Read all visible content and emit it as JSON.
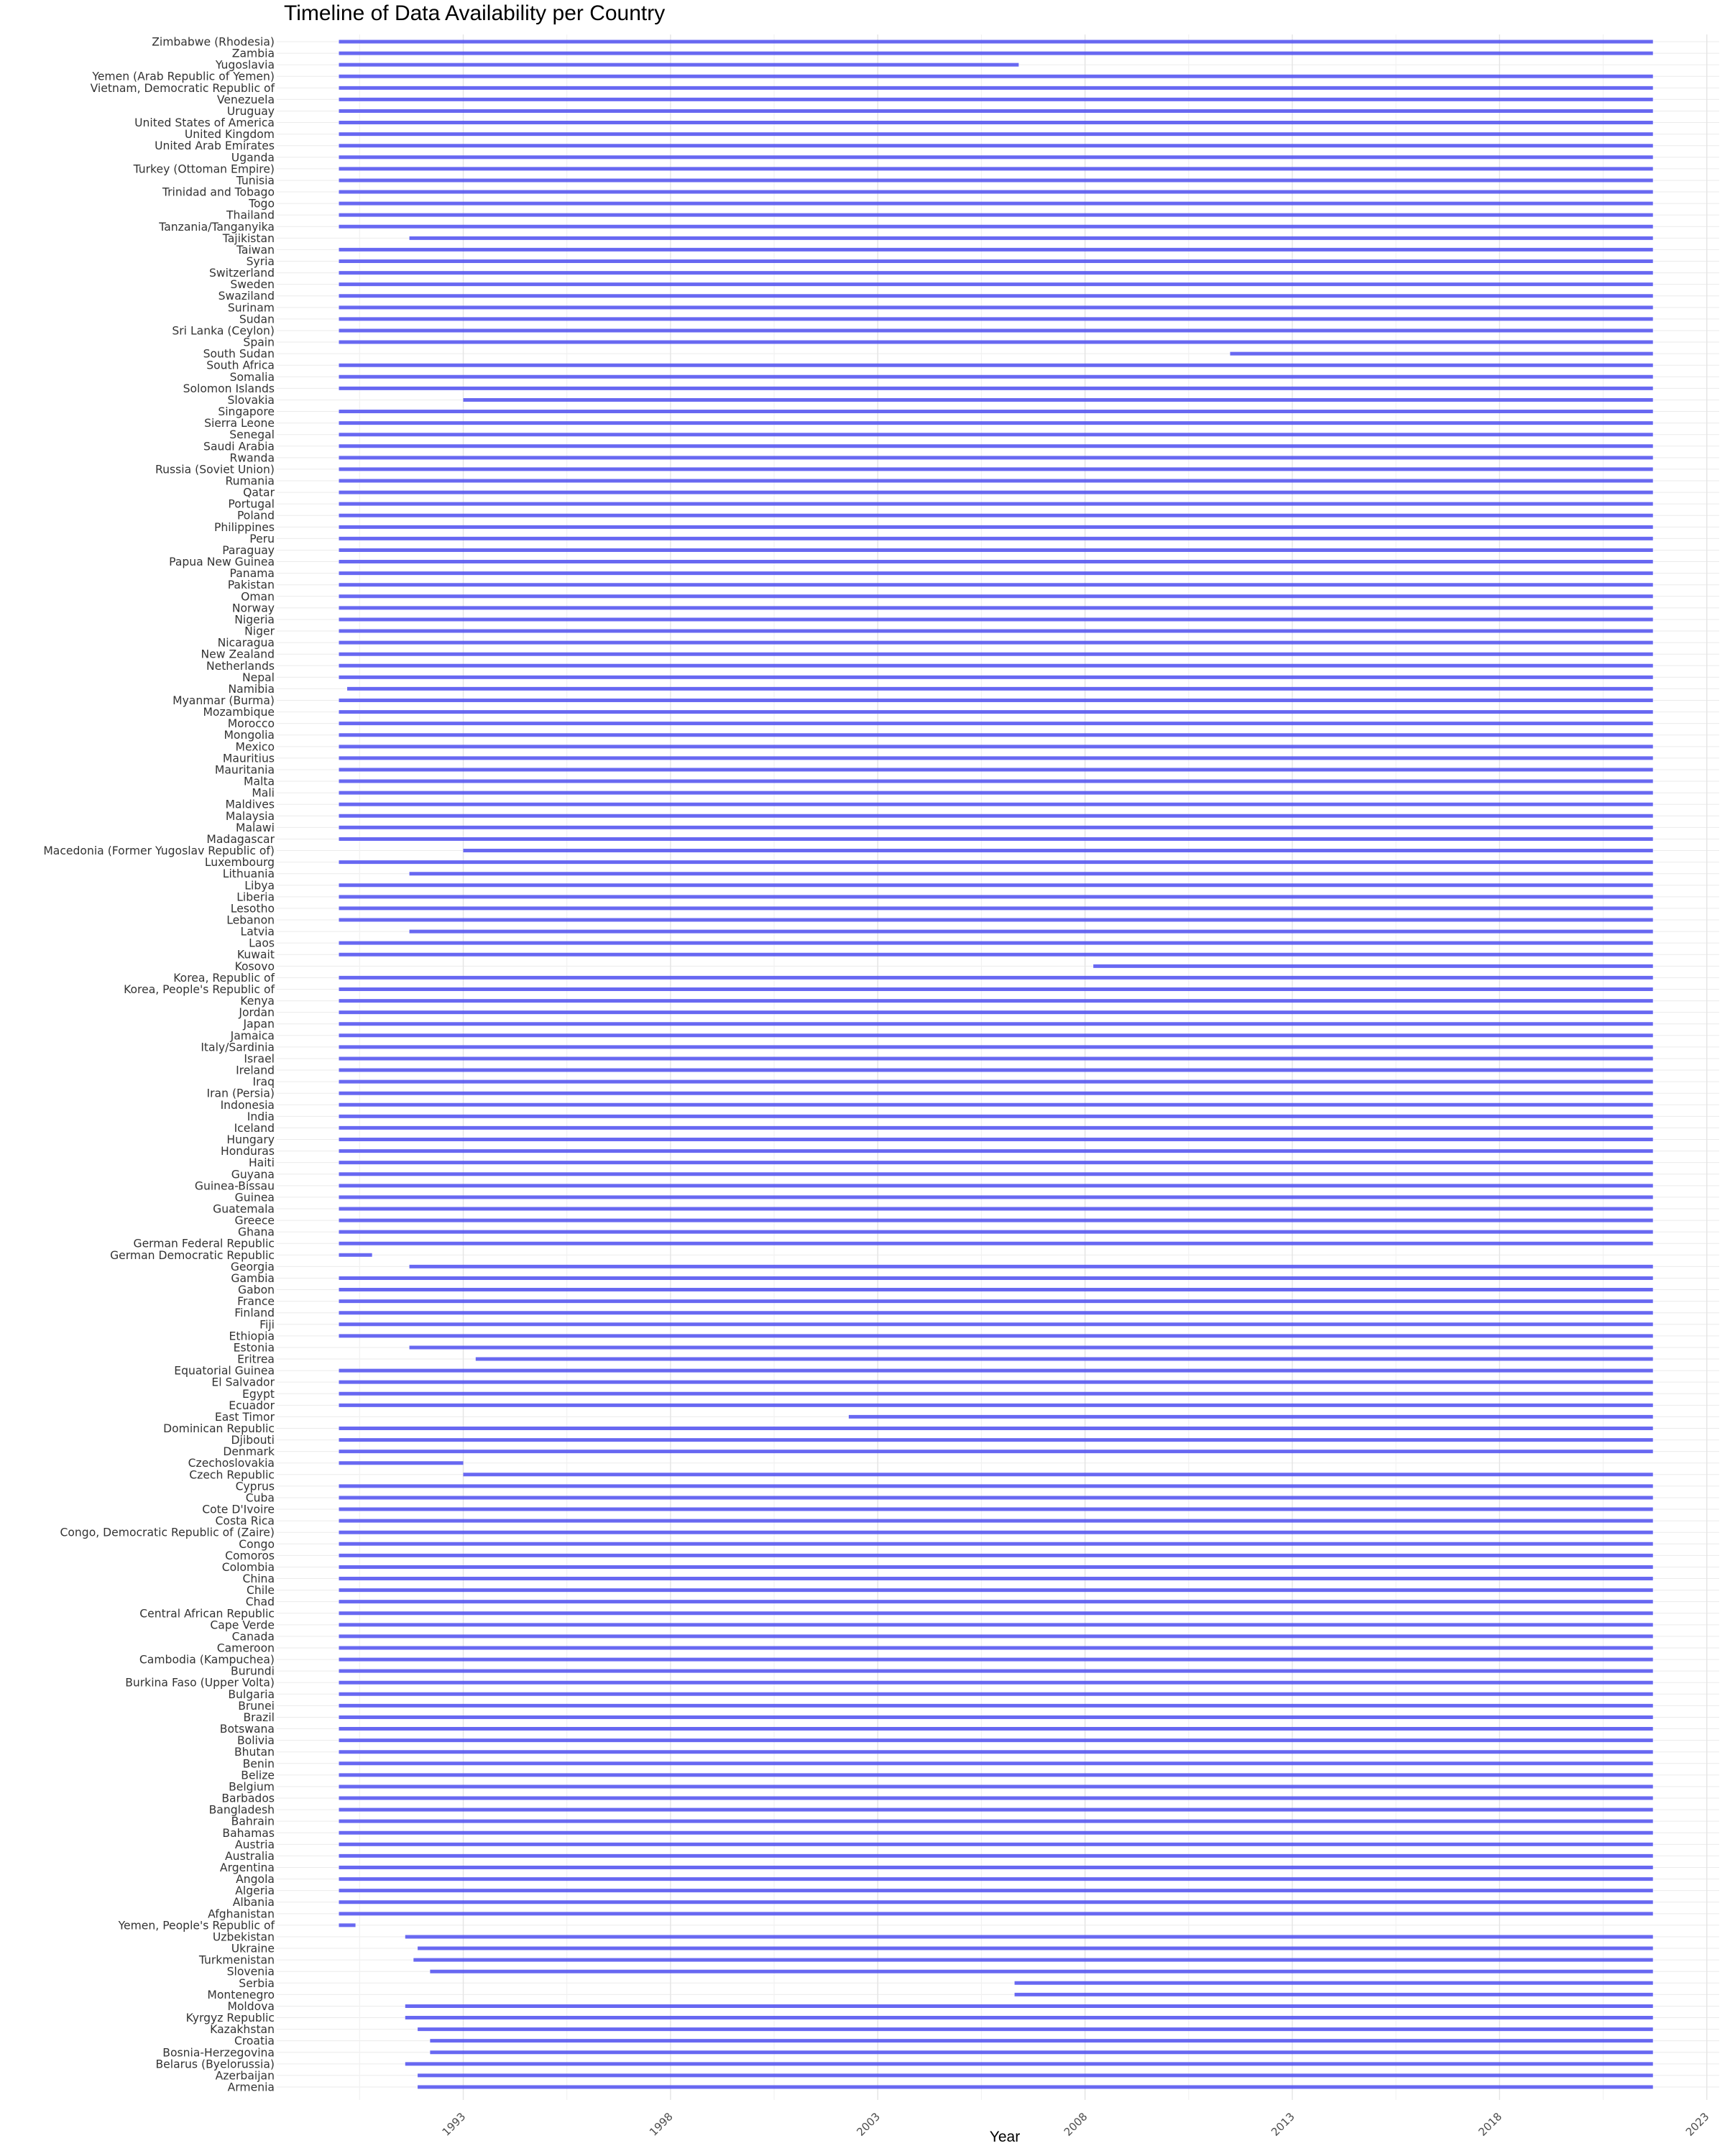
{
  "chart_data": {
    "type": "timeline",
    "title": "Timeline of Data Availability per Country",
    "xlabel": "Year",
    "ylabel": "",
    "x_ticks": [
      1993,
      1998,
      2003,
      2008,
      2013,
      2018,
      2023
    ],
    "xlim": [
      1988.5,
      2023.3
    ],
    "grid": true,
    "bar_color": "#4f4ff0",
    "series": [
      {
        "country": "Zimbabwe (Rhodesia)",
        "start": 1990,
        "end": 2021.7
      },
      {
        "country": "Zambia",
        "start": 1990,
        "end": 2021.7
      },
      {
        "country": "Yugoslavia",
        "start": 1990,
        "end": 2006.4
      },
      {
        "country": "Yemen (Arab Republic of Yemen)",
        "start": 1990,
        "end": 2021.7
      },
      {
        "country": "Vietnam, Democratic Republic of",
        "start": 1990,
        "end": 2021.7
      },
      {
        "country": "Venezuela",
        "start": 1990,
        "end": 2021.7
      },
      {
        "country": "Uruguay",
        "start": 1990,
        "end": 2021.7
      },
      {
        "country": "United States of America",
        "start": 1990,
        "end": 2021.7
      },
      {
        "country": "United Kingdom",
        "start": 1990,
        "end": 2021.7
      },
      {
        "country": "United Arab Emirates",
        "start": 1990,
        "end": 2021.7
      },
      {
        "country": "Uganda",
        "start": 1990,
        "end": 2021.7
      },
      {
        "country": "Turkey (Ottoman Empire)",
        "start": 1990,
        "end": 2021.7
      },
      {
        "country": "Tunisia",
        "start": 1990,
        "end": 2021.7
      },
      {
        "country": "Trinidad and Tobago",
        "start": 1990,
        "end": 2021.7
      },
      {
        "country": "Togo",
        "start": 1990,
        "end": 2021.7
      },
      {
        "country": "Thailand",
        "start": 1990,
        "end": 2021.7
      },
      {
        "country": "Tanzania/Tanganyika",
        "start": 1990,
        "end": 2021.7
      },
      {
        "country": "Tajikistan",
        "start": 1991.7,
        "end": 2021.7
      },
      {
        "country": "Taiwan",
        "start": 1990,
        "end": 2021.7
      },
      {
        "country": "Syria",
        "start": 1990,
        "end": 2021.7
      },
      {
        "country": "Switzerland",
        "start": 1990,
        "end": 2021.7
      },
      {
        "country": "Sweden",
        "start": 1990,
        "end": 2021.7
      },
      {
        "country": "Swaziland",
        "start": 1990,
        "end": 2021.7
      },
      {
        "country": "Surinam",
        "start": 1990,
        "end": 2021.7
      },
      {
        "country": "Sudan",
        "start": 1990,
        "end": 2021.7
      },
      {
        "country": "Sri Lanka (Ceylon)",
        "start": 1990,
        "end": 2021.7
      },
      {
        "country": "Spain",
        "start": 1990,
        "end": 2021.7
      },
      {
        "country": "South Sudan",
        "start": 2011.5,
        "end": 2021.7
      },
      {
        "country": "South Africa",
        "start": 1990,
        "end": 2021.7
      },
      {
        "country": "Somalia",
        "start": 1990,
        "end": 2021.7
      },
      {
        "country": "Solomon Islands",
        "start": 1990,
        "end": 2021.7
      },
      {
        "country": "Slovakia",
        "start": 1993,
        "end": 2021.7
      },
      {
        "country": "Singapore",
        "start": 1990,
        "end": 2021.7
      },
      {
        "country": "Sierra Leone",
        "start": 1990,
        "end": 2021.7
      },
      {
        "country": "Senegal",
        "start": 1990,
        "end": 2021.7
      },
      {
        "country": "Saudi Arabia",
        "start": 1990,
        "end": 2021.7
      },
      {
        "country": "Rwanda",
        "start": 1990,
        "end": 2021.7
      },
      {
        "country": "Russia (Soviet Union)",
        "start": 1990,
        "end": 2021.7
      },
      {
        "country": "Rumania",
        "start": 1990,
        "end": 2021.7
      },
      {
        "country": "Qatar",
        "start": 1990,
        "end": 2021.7
      },
      {
        "country": "Portugal",
        "start": 1990,
        "end": 2021.7
      },
      {
        "country": "Poland",
        "start": 1990,
        "end": 2021.7
      },
      {
        "country": "Philippines",
        "start": 1990,
        "end": 2021.7
      },
      {
        "country": "Peru",
        "start": 1990,
        "end": 2021.7
      },
      {
        "country": "Paraguay",
        "start": 1990,
        "end": 2021.7
      },
      {
        "country": "Papua New Guinea",
        "start": 1990,
        "end": 2021.7
      },
      {
        "country": "Panama",
        "start": 1990,
        "end": 2021.7
      },
      {
        "country": "Pakistan",
        "start": 1990,
        "end": 2021.7
      },
      {
        "country": "Oman",
        "start": 1990,
        "end": 2021.7
      },
      {
        "country": "Norway",
        "start": 1990,
        "end": 2021.7
      },
      {
        "country": "Nigeria",
        "start": 1990,
        "end": 2021.7
      },
      {
        "country": "Niger",
        "start": 1990,
        "end": 2021.7
      },
      {
        "country": "Nicaragua",
        "start": 1990,
        "end": 2021.7
      },
      {
        "country": "New Zealand",
        "start": 1990,
        "end": 2021.7
      },
      {
        "country": "Netherlands",
        "start": 1990,
        "end": 2021.7
      },
      {
        "country": "Nepal",
        "start": 1990,
        "end": 2021.7
      },
      {
        "country": "Namibia",
        "start": 1990.2,
        "end": 2021.7
      },
      {
        "country": "Myanmar (Burma)",
        "start": 1990,
        "end": 2021.7
      },
      {
        "country": "Mozambique",
        "start": 1990,
        "end": 2021.7
      },
      {
        "country": "Morocco",
        "start": 1990,
        "end": 2021.7
      },
      {
        "country": "Mongolia",
        "start": 1990,
        "end": 2021.7
      },
      {
        "country": "Mexico",
        "start": 1990,
        "end": 2021.7
      },
      {
        "country": "Mauritius",
        "start": 1990,
        "end": 2021.7
      },
      {
        "country": "Mauritania",
        "start": 1990,
        "end": 2021.7
      },
      {
        "country": "Malta",
        "start": 1990,
        "end": 2021.7
      },
      {
        "country": "Mali",
        "start": 1990,
        "end": 2021.7
      },
      {
        "country": "Maldives",
        "start": 1990,
        "end": 2021.7
      },
      {
        "country": "Malaysia",
        "start": 1990,
        "end": 2021.7
      },
      {
        "country": "Malawi",
        "start": 1990,
        "end": 2021.7
      },
      {
        "country": "Madagascar",
        "start": 1990,
        "end": 2021.7
      },
      {
        "country": "Macedonia (Former Yugoslav Republic of)",
        "start": 1993,
        "end": 2021.7
      },
      {
        "country": "Luxembourg",
        "start": 1990,
        "end": 2021.7
      },
      {
        "country": "Lithuania",
        "start": 1991.7,
        "end": 2021.7
      },
      {
        "country": "Libya",
        "start": 1990,
        "end": 2021.7
      },
      {
        "country": "Liberia",
        "start": 1990,
        "end": 2021.7
      },
      {
        "country": "Lesotho",
        "start": 1990,
        "end": 2021.7
      },
      {
        "country": "Lebanon",
        "start": 1990,
        "end": 2021.7
      },
      {
        "country": "Latvia",
        "start": 1991.7,
        "end": 2021.7
      },
      {
        "country": "Laos",
        "start": 1990,
        "end": 2021.7
      },
      {
        "country": "Kuwait",
        "start": 1990,
        "end": 2021.7
      },
      {
        "country": "Kosovo",
        "start": 2008.2,
        "end": 2021.7
      },
      {
        "country": "Korea, Republic of",
        "start": 1990,
        "end": 2021.7
      },
      {
        "country": "Korea, People's Republic of",
        "start": 1990,
        "end": 2021.7
      },
      {
        "country": "Kenya",
        "start": 1990,
        "end": 2021.7
      },
      {
        "country": "Jordan",
        "start": 1990,
        "end": 2021.7
      },
      {
        "country": "Japan",
        "start": 1990,
        "end": 2021.7
      },
      {
        "country": "Jamaica",
        "start": 1990,
        "end": 2021.7
      },
      {
        "country": "Italy/Sardinia",
        "start": 1990,
        "end": 2021.7
      },
      {
        "country": "Israel",
        "start": 1990,
        "end": 2021.7
      },
      {
        "country": "Ireland",
        "start": 1990,
        "end": 2021.7
      },
      {
        "country": "Iraq",
        "start": 1990,
        "end": 2021.7
      },
      {
        "country": "Iran (Persia)",
        "start": 1990,
        "end": 2021.7
      },
      {
        "country": "Indonesia",
        "start": 1990,
        "end": 2021.7
      },
      {
        "country": "India",
        "start": 1990,
        "end": 2021.7
      },
      {
        "country": "Iceland",
        "start": 1990,
        "end": 2021.7
      },
      {
        "country": "Hungary",
        "start": 1990,
        "end": 2021.7
      },
      {
        "country": "Honduras",
        "start": 1990,
        "end": 2021.7
      },
      {
        "country": "Haiti",
        "start": 1990,
        "end": 2021.7
      },
      {
        "country": "Guyana",
        "start": 1990,
        "end": 2021.7
      },
      {
        "country": "Guinea-Bissau",
        "start": 1990,
        "end": 2021.7
      },
      {
        "country": "Guinea",
        "start": 1990,
        "end": 2021.7
      },
      {
        "country": "Guatemala",
        "start": 1990,
        "end": 2021.7
      },
      {
        "country": "Greece",
        "start": 1990,
        "end": 2021.7
      },
      {
        "country": "Ghana",
        "start": 1990,
        "end": 2021.7
      },
      {
        "country": "German Federal Republic",
        "start": 1990,
        "end": 2021.7
      },
      {
        "country": "German Democratic Republic",
        "start": 1990,
        "end": 1990.8
      },
      {
        "country": "Georgia",
        "start": 1991.7,
        "end": 2021.7
      },
      {
        "country": "Gambia",
        "start": 1990,
        "end": 2021.7
      },
      {
        "country": "Gabon",
        "start": 1990,
        "end": 2021.7
      },
      {
        "country": "France",
        "start": 1990,
        "end": 2021.7
      },
      {
        "country": "Finland",
        "start": 1990,
        "end": 2021.7
      },
      {
        "country": "Fiji",
        "start": 1990,
        "end": 2021.7
      },
      {
        "country": "Ethiopia",
        "start": 1990,
        "end": 2021.7
      },
      {
        "country": "Estonia",
        "start": 1991.7,
        "end": 2021.7
      },
      {
        "country": "Eritrea",
        "start": 1993.3,
        "end": 2021.7
      },
      {
        "country": "Equatorial Guinea",
        "start": 1990,
        "end": 2021.7
      },
      {
        "country": "El Salvador",
        "start": 1990,
        "end": 2021.7
      },
      {
        "country": "Egypt",
        "start": 1990,
        "end": 2021.7
      },
      {
        "country": "Ecuador",
        "start": 1990,
        "end": 2021.7
      },
      {
        "country": "East Timor",
        "start": 2002.3,
        "end": 2021.7
      },
      {
        "country": "Dominican Republic",
        "start": 1990,
        "end": 2021.7
      },
      {
        "country": "Djibouti",
        "start": 1990,
        "end": 2021.7
      },
      {
        "country": "Denmark",
        "start": 1990,
        "end": 2021.7
      },
      {
        "country": "Czechoslovakia",
        "start": 1990,
        "end": 1993
      },
      {
        "country": "Czech Republic",
        "start": 1993,
        "end": 2021.7
      },
      {
        "country": "Cyprus",
        "start": 1990,
        "end": 2021.7
      },
      {
        "country": "Cuba",
        "start": 1990,
        "end": 2021.7
      },
      {
        "country": "Cote D'Ivoire",
        "start": 1990,
        "end": 2021.7
      },
      {
        "country": "Costa Rica",
        "start": 1990,
        "end": 2021.7
      },
      {
        "country": "Congo, Democratic Republic of (Zaire)",
        "start": 1990,
        "end": 2021.7
      },
      {
        "country": "Congo",
        "start": 1990,
        "end": 2021.7
      },
      {
        "country": "Comoros",
        "start": 1990,
        "end": 2021.7
      },
      {
        "country": "Colombia",
        "start": 1990,
        "end": 2021.7
      },
      {
        "country": "China",
        "start": 1990,
        "end": 2021.7
      },
      {
        "country": "Chile",
        "start": 1990,
        "end": 2021.7
      },
      {
        "country": "Chad",
        "start": 1990,
        "end": 2021.7
      },
      {
        "country": "Central African Republic",
        "start": 1990,
        "end": 2021.7
      },
      {
        "country": "Cape Verde",
        "start": 1990,
        "end": 2021.7
      },
      {
        "country": "Canada",
        "start": 1990,
        "end": 2021.7
      },
      {
        "country": "Cameroon",
        "start": 1990,
        "end": 2021.7
      },
      {
        "country": "Cambodia (Kampuchea)",
        "start": 1990,
        "end": 2021.7
      },
      {
        "country": "Burundi",
        "start": 1990,
        "end": 2021.7
      },
      {
        "country": "Burkina Faso (Upper Volta)",
        "start": 1990,
        "end": 2021.7
      },
      {
        "country": "Bulgaria",
        "start": 1990,
        "end": 2021.7
      },
      {
        "country": "Brunei",
        "start": 1990,
        "end": 2021.7
      },
      {
        "country": "Brazil",
        "start": 1990,
        "end": 2021.7
      },
      {
        "country": "Botswana",
        "start": 1990,
        "end": 2021.7
      },
      {
        "country": "Bolivia",
        "start": 1990,
        "end": 2021.7
      },
      {
        "country": "Bhutan",
        "start": 1990,
        "end": 2021.7
      },
      {
        "country": "Benin",
        "start": 1990,
        "end": 2021.7
      },
      {
        "country": "Belize",
        "start": 1990,
        "end": 2021.7
      },
      {
        "country": "Belgium",
        "start": 1990,
        "end": 2021.7
      },
      {
        "country": "Barbados",
        "start": 1990,
        "end": 2021.7
      },
      {
        "country": "Bangladesh",
        "start": 1990,
        "end": 2021.7
      },
      {
        "country": "Bahrain",
        "start": 1990,
        "end": 2021.7
      },
      {
        "country": "Bahamas",
        "start": 1990,
        "end": 2021.7
      },
      {
        "country": "Austria",
        "start": 1990,
        "end": 2021.7
      },
      {
        "country": "Australia",
        "start": 1990,
        "end": 2021.7
      },
      {
        "country": "Argentina",
        "start": 1990,
        "end": 2021.7
      },
      {
        "country": "Angola",
        "start": 1990,
        "end": 2021.7
      },
      {
        "country": "Algeria",
        "start": 1990,
        "end": 2021.7
      },
      {
        "country": "Albania",
        "start": 1990,
        "end": 2021.7
      },
      {
        "country": "Afghanistan",
        "start": 1990,
        "end": 2021.7
      },
      {
        "country": "Yemen, People's Republic of",
        "start": 1990,
        "end": 1990.4
      },
      {
        "country": "Uzbekistan",
        "start": 1991.6,
        "end": 2021.7
      },
      {
        "country": "Ukraine",
        "start": 1991.9,
        "end": 2021.7
      },
      {
        "country": "Turkmenistan",
        "start": 1991.8,
        "end": 2021.7
      },
      {
        "country": "Slovenia",
        "start": 1992.2,
        "end": 2021.7
      },
      {
        "country": "Serbia",
        "start": 2006.3,
        "end": 2021.7
      },
      {
        "country": "Montenegro",
        "start": 2006.3,
        "end": 2021.7
      },
      {
        "country": "Moldova",
        "start": 1991.6,
        "end": 2021.7
      },
      {
        "country": "Kyrgyz Republic",
        "start": 1991.6,
        "end": 2021.7
      },
      {
        "country": "Kazakhstan",
        "start": 1991.9,
        "end": 2021.7
      },
      {
        "country": "Croatia",
        "start": 1992.2,
        "end": 2021.7
      },
      {
        "country": "Bosnia-Herzegovina",
        "start": 1992.2,
        "end": 2021.7
      },
      {
        "country": "Belarus (Byelorussia)",
        "start": 1991.6,
        "end": 2021.7
      },
      {
        "country": "Azerbaijan",
        "start": 1991.9,
        "end": 2021.7
      },
      {
        "country": "Armenia",
        "start": 1991.9,
        "end": 2021.7
      }
    ]
  }
}
